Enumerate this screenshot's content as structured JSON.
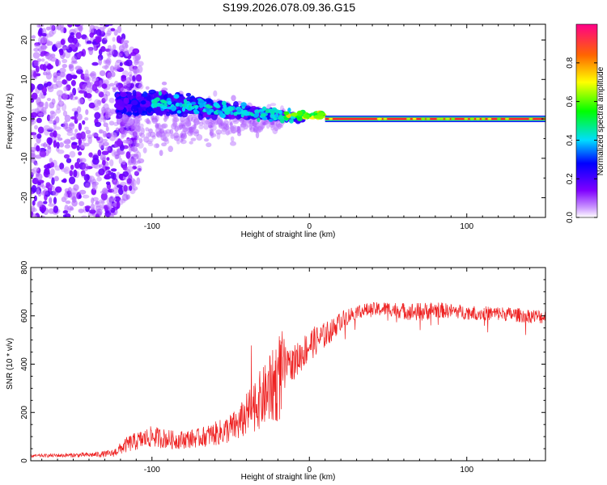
{
  "title": "S199.2026.078.09.36.G15",
  "colors": {
    "snr_line": "#ee2222",
    "ridge": "#ff2a2a",
    "axis": "#000000"
  },
  "chart_data": [
    {
      "type": "heatmap",
      "title": "S199.2026.078.09.36.G15",
      "xlabel": "Height of straight line (km)",
      "ylabel": "Frequency (Hz)",
      "xlim": [
        -177,
        150
      ],
      "ylim": [
        -25,
        24
      ],
      "xticks": [
        -100,
        0,
        100
      ],
      "xtick_labels": [
        "-100",
        "0",
        "100"
      ],
      "yticks": [
        -20,
        -10,
        0,
        10,
        20
      ],
      "ytick_labels": [
        "-20",
        "-10",
        "0",
        "10",
        "20"
      ],
      "grid": false,
      "description_series": [
        {
          "name": "noise spread",
          "x_range": [
            -177,
            -120
          ],
          "freq_spread_hz": 24
        },
        {
          "name": "converging band",
          "x_range": [
            -120,
            -15
          ],
          "freq_spread_hz": 8
        },
        {
          "name": "tone",
          "x_range": [
            10,
            150
          ],
          "freq_hz": 0
        }
      ],
      "colorbar": {
        "label": "Normalized spectral amplitude",
        "range": [
          0,
          1
        ],
        "ticks": [
          0.0,
          0.2,
          0.4,
          0.6,
          0.8
        ],
        "tick_labels": [
          "0.0",
          "0.2",
          "0.4",
          "0.6",
          "0.8"
        ]
      }
    },
    {
      "type": "line",
      "xlabel": "Height of straight line (km)",
      "ylabel": "SNR (10 * v/v)",
      "xlim": [
        -177,
        150
      ],
      "ylim": [
        0,
        800
      ],
      "xticks": [
        -100,
        0,
        100
      ],
      "xtick_labels": [
        "-100",
        "0",
        "100"
      ],
      "yticks": [
        0,
        200,
        400,
        600,
        800
      ],
      "ytick_labels": [
        "0",
        "200",
        "400",
        "600",
        "800"
      ],
      "grid": false,
      "series": [
        {
          "name": "SNR",
          "x": [
            -177,
            -160,
            -140,
            -125,
            -115,
            -100,
            -85,
            -70,
            -55,
            -45,
            -35,
            -25,
            -18,
            -14,
            -10,
            -5,
            0,
            5,
            10,
            15,
            20,
            25,
            30,
            40,
            50,
            60,
            70,
            80,
            90,
            100,
            110,
            120,
            130,
            140,
            150
          ],
          "y": [
            20,
            22,
            24,
            30,
            70,
            100,
            85,
            95,
            120,
            150,
            230,
            290,
            360,
            395,
            405,
            440,
            480,
            500,
            520,
            545,
            580,
            600,
            620,
            625,
            630,
            620,
            615,
            625,
            620,
            615,
            610,
            610,
            605,
            600,
            595
          ],
          "noise_amp": [
            6,
            8,
            10,
            15,
            35,
            45,
            38,
            40,
            55,
            70,
            110,
            140,
            200,
            60,
            70,
            70,
            70,
            60,
            55,
            45,
            40,
            35,
            30,
            30,
            30,
            35,
            40,
            35,
            30,
            30,
            30,
            30,
            30,
            30,
            30
          ]
        }
      ]
    }
  ]
}
